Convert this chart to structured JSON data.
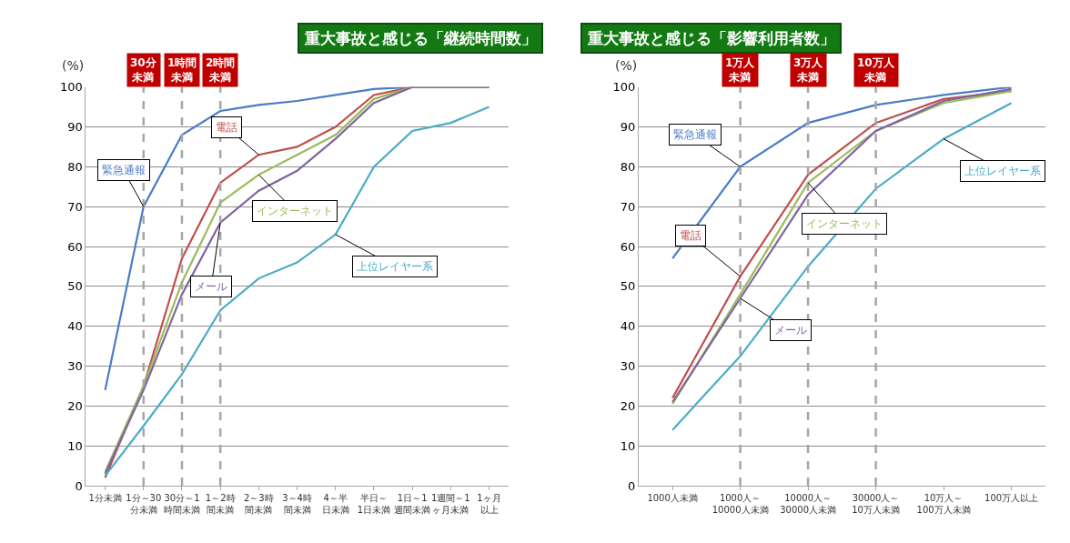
{
  "chart_data": [
    {
      "type": "line",
      "title": "重大事故と感じる「継続時間数」",
      "ylabel": "(%)",
      "categories": [
        "1分未満",
        "1分～30分未満",
        "30分～1時間未満",
        "1～2時間未満",
        "2～3時間未満",
        "3～4時間未満",
        "4～半日未満",
        "半日～1日未満",
        "1日～1週間未満",
        "1週間～1ヶ月未満",
        "1ヶ月以上"
      ],
      "series": [
        {
          "name": "緊急通報",
          "color": "#4a7cc7",
          "values": [
            24,
            70,
            88,
            94,
            95.5,
            96.5,
            98,
            99.5,
            100,
            100,
            100
          ]
        },
        {
          "name": "電話",
          "color": "#c0504d",
          "values": [
            2,
            25,
            57,
            76,
            83,
            85,
            90,
            98,
            100,
            100,
            100
          ]
        },
        {
          "name": "インターネット",
          "color": "#9bbb59",
          "values": [
            3.5,
            25,
            51,
            71,
            78,
            83,
            88,
            97,
            100,
            100,
            100
          ]
        },
        {
          "name": "メール",
          "color": "#8064a2",
          "values": [
            3,
            24,
            48,
            66,
            74,
            79,
            87,
            96,
            100,
            100,
            100
          ]
        },
        {
          "name": "上位レイヤー系",
          "color": "#4bacc6",
          "values": [
            2.5,
            15,
            28,
            44,
            52,
            56,
            63,
            80,
            89,
            91,
            95
          ]
        }
      ],
      "ylim": [
        0,
        100
      ],
      "yticks": [
        0,
        10,
        20,
        30,
        40,
        50,
        60,
        70,
        80,
        90,
        100
      ],
      "grid": "y",
      "legend": false,
      "marker": "none",
      "line_style": "solid",
      "ref_lines": [
        {
          "axis": "x",
          "value": "1分～30分未満",
          "label": "30分未満",
          "color": "#a6a6a6",
          "line_style": "dashed"
        },
        {
          "axis": "x",
          "value": "30分～1時間未満",
          "label": "1時間未満",
          "color": "#a6a6a6",
          "line_style": "dashed"
        },
        {
          "axis": "x",
          "value": "1～2時間未満",
          "label": "2時間未満",
          "color": "#a6a6a6",
          "line_style": "dashed"
        }
      ]
    },
    {
      "type": "line",
      "title": "重大事故と感じる「影響利用者数」",
      "ylabel": "(%)",
      "categories": [
        "1000人未満",
        "1000人～10000人未満",
        "10000人～30000人未満",
        "30000人～10万人未満",
        "10万人～100万人未満",
        "100万人以上"
      ],
      "series": [
        {
          "name": "緊急通報",
          "color": "#4a7cc7",
          "values": [
            57,
            80,
            91,
            95.5,
            98,
            100
          ]
        },
        {
          "name": "電話",
          "color": "#c0504d",
          "values": [
            22,
            52.5,
            78,
            91,
            97,
            99
          ]
        },
        {
          "name": "インターネット",
          "color": "#9bbb59",
          "values": [
            20.5,
            48,
            76,
            89,
            96,
            99
          ]
        },
        {
          "name": "メール",
          "color": "#8064a2",
          "values": [
            21,
            47,
            73,
            89,
            96.5,
            99.5
          ]
        },
        {
          "name": "上位レイヤー系",
          "color": "#4bacc6",
          "values": [
            14,
            32.5,
            55,
            74.5,
            87,
            96
          ]
        }
      ],
      "ylim": [
        0,
        100
      ],
      "yticks": [
        0,
        10,
        20,
        30,
        40,
        50,
        60,
        70,
        80,
        90,
        100
      ],
      "grid": "y",
      "legend": false,
      "marker": "none",
      "line_style": "solid",
      "ref_lines": [
        {
          "axis": "x",
          "value": "1000人～10000人未満",
          "label": "1万人未満",
          "color": "#a6a6a6",
          "line_style": "dashed"
        },
        {
          "axis": "x",
          "value": "10000人～30000人未満",
          "label": "3万人未満",
          "color": "#a6a6a6",
          "line_style": "dashed"
        },
        {
          "axis": "x",
          "value": "30000人～10万人未満",
          "label": "10万人未満",
          "color": "#a6a6a6",
          "line_style": "dashed"
        }
      ]
    }
  ]
}
